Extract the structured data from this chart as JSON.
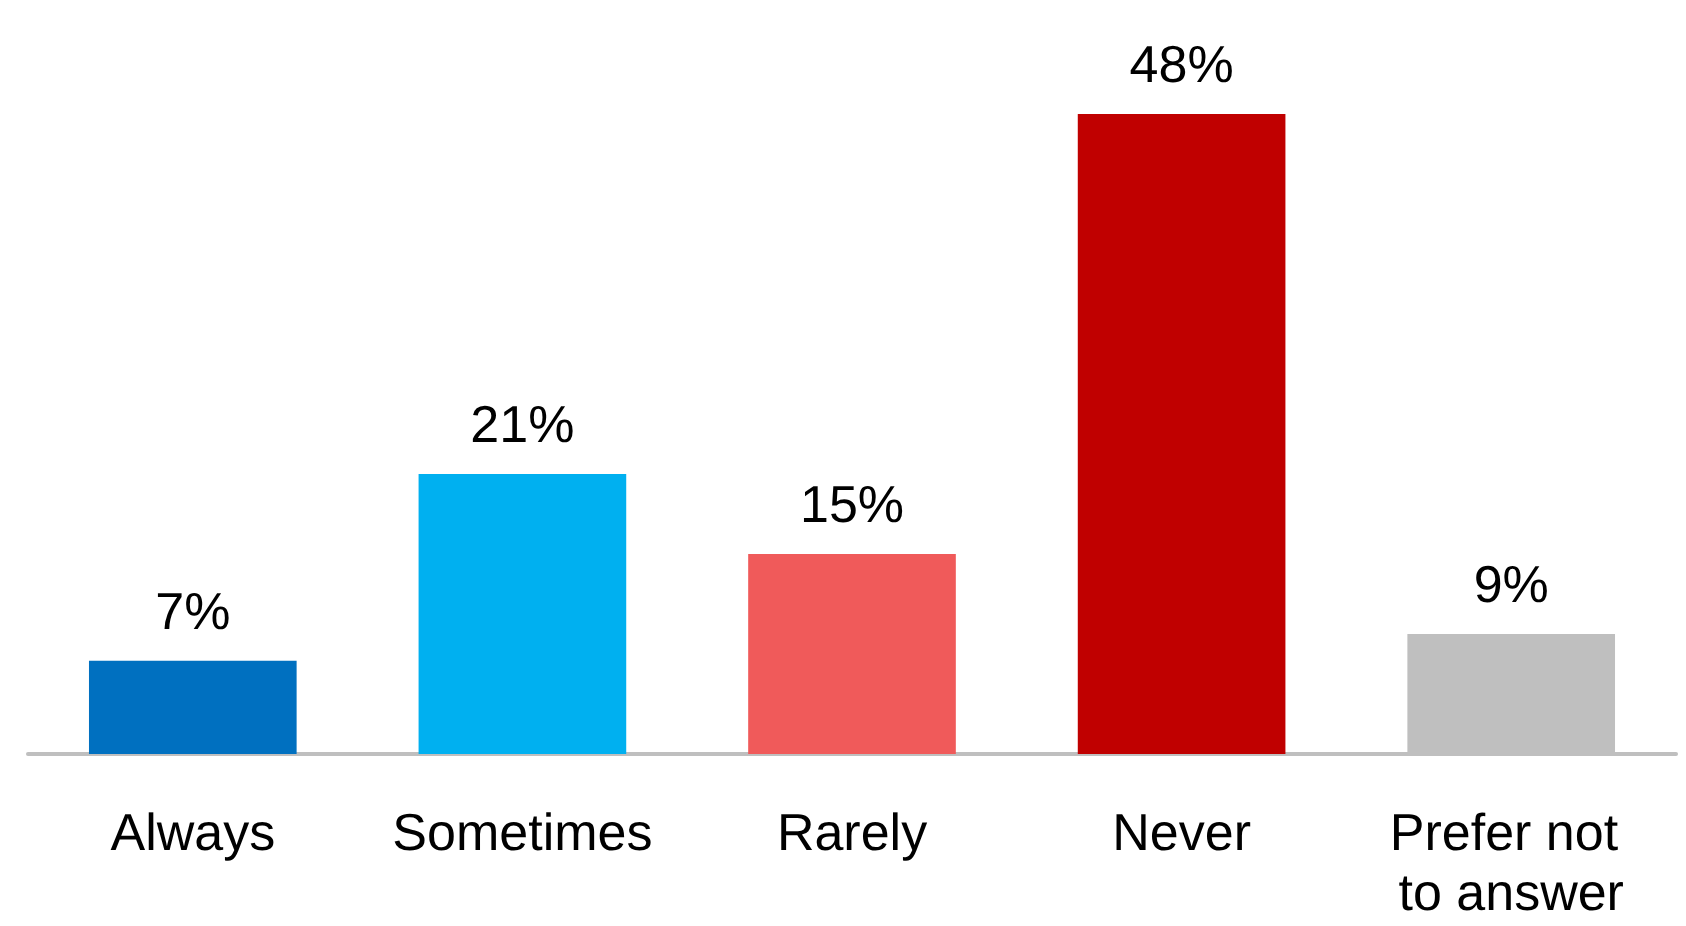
{
  "chart_data": {
    "type": "bar",
    "categories": [
      "Always",
      "Sometimes",
      "Rarely",
      "Never",
      "Prefer not to answer"
    ],
    "values": [
      7,
      21,
      15,
      48,
      9
    ],
    "colors": [
      "#0070c0",
      "#00b0f0",
      "#f05a5a",
      "#c00000",
      "#bfbfbf"
    ],
    "value_labels": [
      "7%",
      "21%",
      "15%",
      "48%",
      "9%"
    ]
  }
}
